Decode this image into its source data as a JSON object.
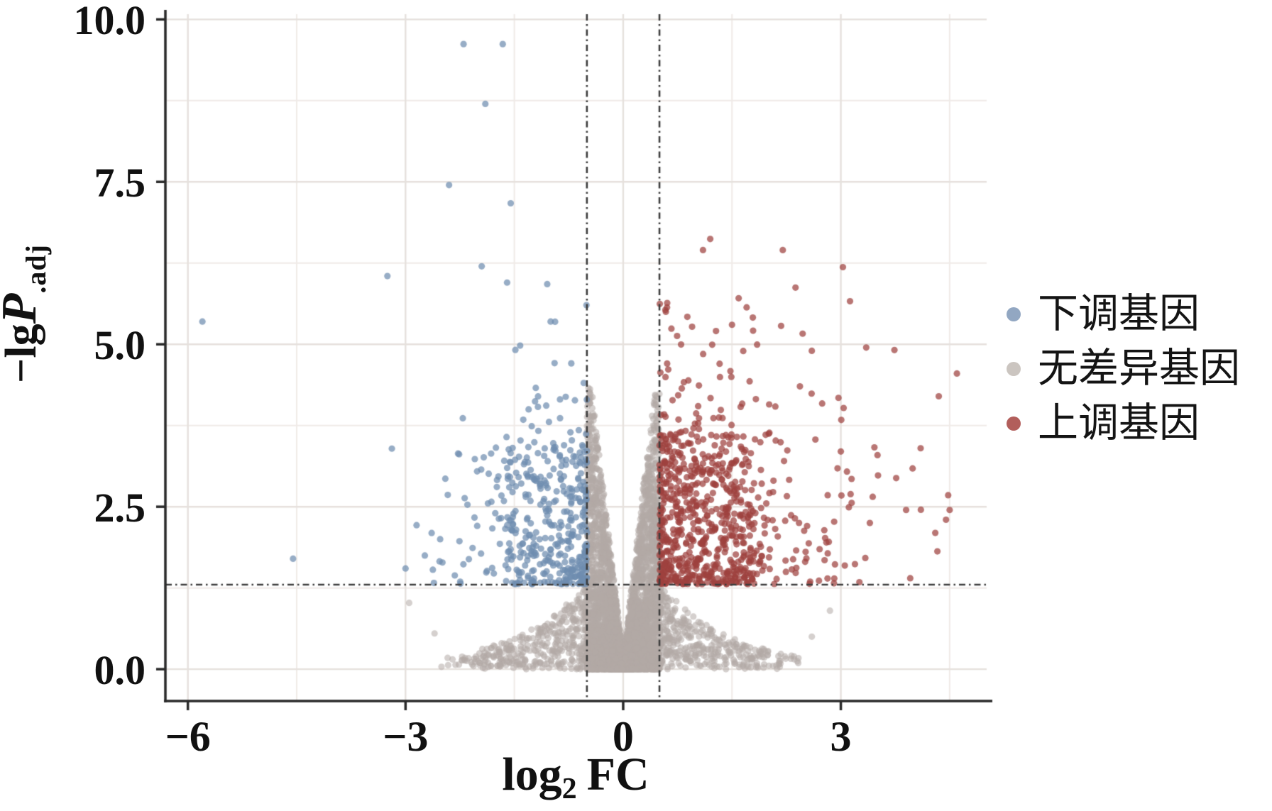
{
  "figure": {
    "background": "#ffffff"
  },
  "chart_data": {
    "type": "scatter",
    "subtype": "volcano-plot",
    "title": "",
    "xlabel_parts": {
      "base": "log",
      "sub": "2",
      "suffix": "FC"
    },
    "ylabel_parts": {
      "prefix": "−lg",
      "italic": "P",
      "sub": ".adj"
    },
    "x_ticks": {
      "values": [
        -6,
        -3,
        0,
        3
      ],
      "labels": [
        "−6",
        "−3",
        "0",
        "3"
      ]
    },
    "y_ticks": {
      "values": [
        0,
        2.5,
        5,
        7.5,
        10
      ],
      "labels": [
        "0.0",
        "2.5",
        "5.0",
        "7.5",
        "10.0"
      ]
    },
    "x_minor_ticks": [
      -4.5,
      -1.5,
      1.5,
      4.5
    ],
    "y_minor_ticks": [
      1.25,
      3.75,
      6.25,
      8.75
    ],
    "xlim": [
      -6.31,
      5.01
    ],
    "ylim": [
      -0.49,
      10.08
    ],
    "grid": true,
    "thresholds": {
      "log2fc": [
        -0.5,
        0.5
      ],
      "neg_lg_p_adj": 1.3
    },
    "legend": {
      "position": "right",
      "items": [
        {
          "label": "下调基因",
          "color": "#92a7c2"
        },
        {
          "label": "无差异基因",
          "color": "#cbc5c0"
        },
        {
          "label": "上调基因",
          "color": "#b25e5b"
        }
      ]
    },
    "point_radius": 4.6,
    "series": [
      {
        "name": "down-regulated",
        "legend_label": "下调基因",
        "color": "#6f8db0",
        "alpha": 0.72,
        "region": "log2fc < -0.5 and -lgP.adj > 1.3",
        "approx_count": 450,
        "notable_points": [
          [
            -5.8,
            5.35
          ],
          [
            -2.2,
            9.62
          ],
          [
            -1.66,
            9.62
          ],
          [
            -1.9,
            8.7
          ],
          [
            -2.4,
            7.45
          ],
          [
            -1.55,
            7.17
          ],
          [
            -1.95,
            6.2
          ],
          [
            -3.25,
            6.05
          ],
          [
            -1.6,
            5.95
          ],
          [
            -1.0,
            5.35
          ],
          [
            -1.42,
            4.98
          ],
          [
            -4.55,
            1.7
          ],
          [
            -3.0,
            1.55
          ]
        ]
      },
      {
        "name": "not-significant",
        "legend_label": "无差异基因",
        "color": "#b2aaa5",
        "alpha": 0.55,
        "region": "|log2fc| < 0.5 or -lgP.adj < 1.3",
        "approx_count": 5000,
        "notable_points": [
          [
            -2.95,
            1.02
          ],
          [
            2.85,
            0.9
          ],
          [
            -2.6,
            0.55
          ],
          [
            2.6,
            0.5
          ]
        ]
      },
      {
        "name": "up-regulated",
        "legend_label": "上调基因",
        "color": "#9e413f",
        "alpha": 0.72,
        "region": "log2fc > 0.5 and -lgP.adj > 1.3",
        "approx_count": 800,
        "notable_points": [
          [
            1.2,
            6.62
          ],
          [
            1.1,
            6.45
          ],
          [
            2.2,
            6.45
          ],
          [
            0.95,
            5.27
          ],
          [
            1.5,
            5.3
          ],
          [
            3.35,
            4.95
          ],
          [
            2.6,
            4.9
          ],
          [
            4.6,
            4.55
          ],
          [
            4.35,
            4.2
          ],
          [
            3.0,
            3.35
          ],
          [
            4.1,
            3.4
          ],
          [
            4.5,
            2.45
          ],
          [
            3.9,
            2.45
          ],
          [
            4.45,
            2.3
          ],
          [
            3.4,
            2.25
          ]
        ]
      }
    ],
    "style_colors": {
      "axis_line": "#2a2a2a",
      "tick_mark": "#2a2a2a",
      "major_grid": "#e6e1dd",
      "minor_grid": "#f0ebe8",
      "threshold_line": "#3c3c3c",
      "tick_label": "#111111"
    }
  }
}
